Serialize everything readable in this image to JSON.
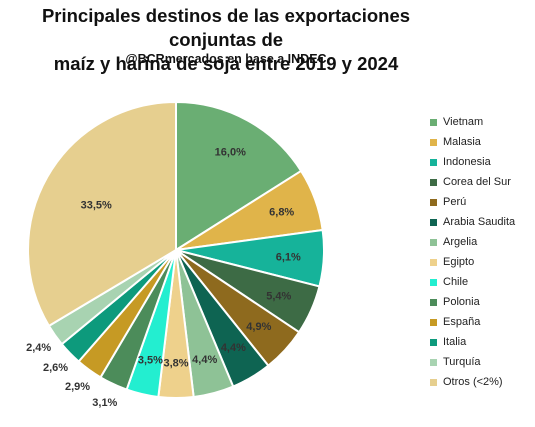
{
  "chart_data": {
    "type": "pie",
    "title_line1": "Principales destinos de las exportaciones conjuntas de",
    "title_line2": "maíz y harina de soja entre 2019 y 2024",
    "subtitle": "@BCRmercados en base a INDEC",
    "legend_position": "right",
    "slices": [
      {
        "label": "Vietnam",
        "value": 16.0,
        "display": "16,0%",
        "color": "#6aae73"
      },
      {
        "label": "Malasia",
        "value": 6.8,
        "display": "6,8%",
        "color": "#e0b44a"
      },
      {
        "label": "Indonesia",
        "value": 6.1,
        "display": "6,1%",
        "color": "#16b39a"
      },
      {
        "label": "Corea del Sur",
        "value": 5.4,
        "display": "5,4%",
        "color": "#3d6b45"
      },
      {
        "label": "Perú",
        "value": 4.9,
        "display": "4,9%",
        "color": "#8e6a1e"
      },
      {
        "label": "Arabia Saudita",
        "value": 4.4,
        "display": "4,4%",
        "color": "#0e6452"
      },
      {
        "label": "Argelia",
        "value": 4.4,
        "display": "4,4%",
        "color": "#8ec296"
      },
      {
        "label": "Egipto",
        "value": 3.8,
        "display": "3,8%",
        "color": "#eed18c"
      },
      {
        "label": "Chile",
        "value": 3.5,
        "display": "3,5%",
        "color": "#23eed0"
      },
      {
        "label": "Polonia",
        "value": 3.1,
        "display": "3,1%",
        "color": "#4c8c5a"
      },
      {
        "label": "España",
        "value": 2.9,
        "display": "2,9%",
        "color": "#c69a24"
      },
      {
        "label": "Italia",
        "value": 2.6,
        "display": "2,6%",
        "color": "#0d9a7c"
      },
      {
        "label": "Turquía",
        "value": 2.4,
        "display": "2,4%",
        "color": "#a8d3b1"
      },
      {
        "label": "Otros (<2%)",
        "value": 33.5,
        "display": "33,5%",
        "color": "#e6cf8f"
      }
    ]
  }
}
